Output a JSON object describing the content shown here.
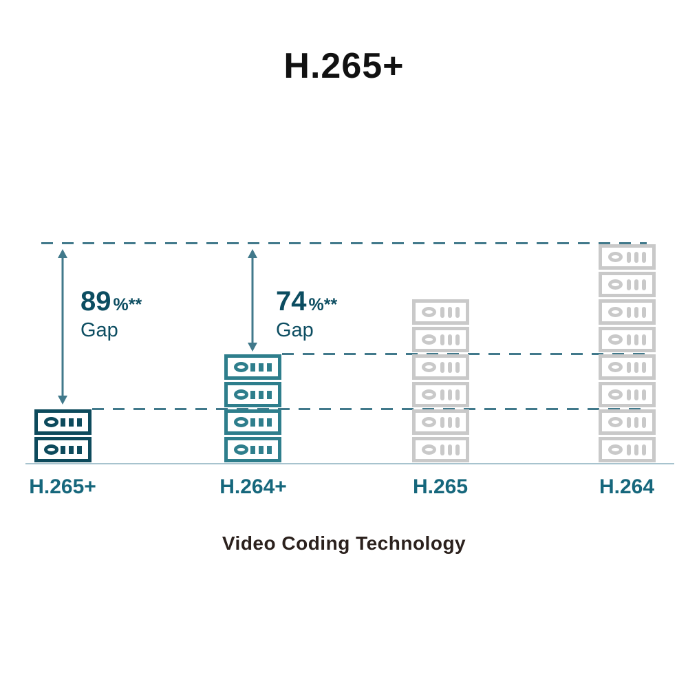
{
  "chart_data": {
    "type": "bar",
    "variant": "pictogram-stacked-server-icons",
    "title": "H.265+",
    "xlabel": "Video Coding Technology",
    "categories": [
      "H.265+",
      "H.264+",
      "H.265",
      "H.264"
    ],
    "values": [
      2,
      4,
      6,
      8
    ],
    "value_unit": "stacked server icons (relative storage / bitrate)",
    "bar_colors": [
      "#0d4a5c",
      "#2e7e8c",
      "#c9c9c9",
      "#c9c9c9"
    ],
    "annotations": [
      {
        "category": "H.265+",
        "number": "89",
        "suffix": "%**",
        "caption": "Gap"
      },
      {
        "category": "H.264+",
        "number": "74",
        "suffix": "%**",
        "caption": "Gap"
      }
    ],
    "reference_lines": [
      {
        "at_value": 8,
        "style": "dashed"
      },
      {
        "at_value": 4,
        "style": "dashed"
      },
      {
        "at_value": 2,
        "style": "dashed"
      }
    ],
    "legend": "none",
    "grid": "off",
    "axis_ranges": {
      "y_icons": [
        0,
        8
      ]
    },
    "colors": {
      "guide_teal": "#41798b",
      "annotation_text": "#0c4d61",
      "category_label": "#16677c",
      "baseline": "#a7c3ce",
      "title": "#111111",
      "xlabel": "#2b211d",
      "background": "#ffffff"
    }
  }
}
